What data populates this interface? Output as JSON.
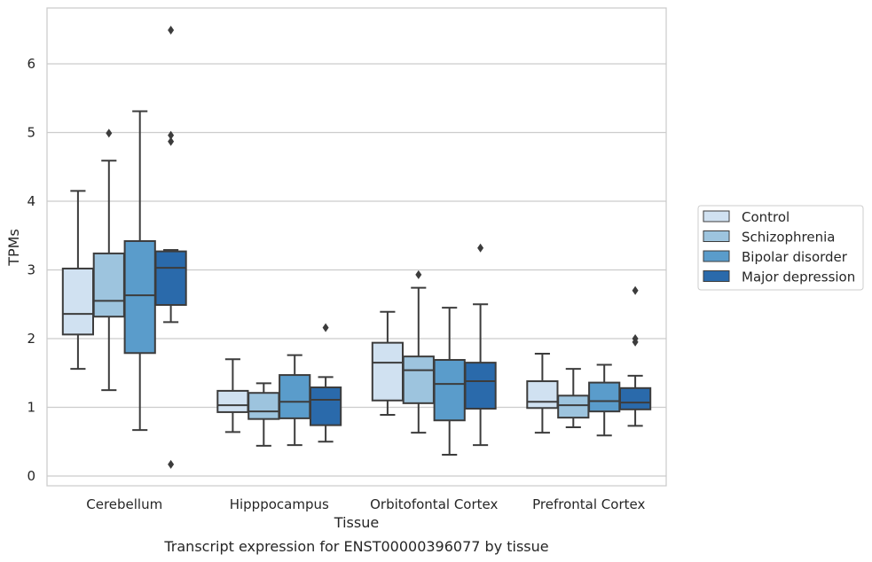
{
  "chart_data": {
    "type": "box",
    "title": "",
    "caption": "Transcript expression for ENST00000396077 by tissue",
    "xlabel": "Tissue",
    "ylabel": "TPMs",
    "ylim": [
      -0.15,
      6.8
    ],
    "yticks": [
      0,
      1,
      2,
      3,
      4,
      5,
      6
    ],
    "grid": true,
    "legend_position": "right",
    "categories": [
      "Cerebellum",
      "Hipppocampus",
      "Orbitofontal Cortex",
      "Prefrontal Cortex"
    ],
    "series": [
      {
        "name": "Control",
        "color": "#d0e1f1",
        "boxes": [
          {
            "whislo": 1.56,
            "q1": 2.06,
            "med": 2.36,
            "q3": 3.02,
            "whishi": 4.15,
            "fliers": []
          },
          {
            "whislo": 0.64,
            "q1": 0.93,
            "med": 1.03,
            "q3": 1.24,
            "whishi": 1.7,
            "fliers": []
          },
          {
            "whislo": 0.89,
            "q1": 1.1,
            "med": 1.65,
            "q3": 1.94,
            "whishi": 2.39,
            "fliers": []
          },
          {
            "whislo": 0.63,
            "q1": 0.99,
            "med": 1.08,
            "q3": 1.38,
            "whishi": 1.78,
            "fliers": []
          }
        ]
      },
      {
        "name": "Schizophrenia",
        "color": "#9dc4de",
        "boxes": [
          {
            "whislo": 1.25,
            "q1": 2.32,
            "med": 2.55,
            "q3": 3.24,
            "whishi": 4.59,
            "fliers": [
              4.99
            ]
          },
          {
            "whislo": 0.44,
            "q1": 0.83,
            "med": 0.94,
            "q3": 1.21,
            "whishi": 1.35,
            "fliers": []
          },
          {
            "whislo": 0.63,
            "q1": 1.06,
            "med": 1.54,
            "q3": 1.74,
            "whishi": 2.74,
            "fliers": [
              2.93
            ]
          },
          {
            "whislo": 0.71,
            "q1": 0.85,
            "med": 1.03,
            "q3": 1.17,
            "whishi": 1.56,
            "fliers": []
          }
        ]
      },
      {
        "name": "Bipolar disorder",
        "color": "#5a9ccb",
        "boxes": [
          {
            "whislo": 0.67,
            "q1": 1.79,
            "med": 2.63,
            "q3": 3.42,
            "whishi": 5.31,
            "fliers": []
          },
          {
            "whislo": 0.45,
            "q1": 0.84,
            "med": 1.08,
            "q3": 1.47,
            "whishi": 1.76,
            "fliers": []
          },
          {
            "whislo": 0.31,
            "q1": 0.81,
            "med": 1.34,
            "q3": 1.69,
            "whishi": 2.45,
            "fliers": []
          },
          {
            "whislo": 0.59,
            "q1": 0.94,
            "med": 1.09,
            "q3": 1.36,
            "whishi": 1.62,
            "fliers": []
          }
        ]
      },
      {
        "name": "Major depression",
        "color": "#2a6aab",
        "boxes": [
          {
            "whislo": 2.24,
            "q1": 2.49,
            "med": 3.03,
            "q3": 3.27,
            "whishi": 3.29,
            "fliers": [
              6.49,
              4.96,
              4.87,
              0.17
            ]
          },
          {
            "whislo": 0.5,
            "q1": 0.74,
            "med": 1.11,
            "q3": 1.29,
            "whishi": 1.44,
            "fliers": [
              2.16
            ]
          },
          {
            "whislo": 0.45,
            "q1": 0.98,
            "med": 1.38,
            "q3": 1.65,
            "whishi": 2.5,
            "fliers": [
              3.32
            ]
          },
          {
            "whislo": 0.73,
            "q1": 0.97,
            "med": 1.07,
            "q3": 1.28,
            "whishi": 1.46,
            "fliers": [
              2.7,
              2.0,
              1.95
            ]
          }
        ]
      }
    ],
    "colors": {
      "grid": "#cccccc",
      "frame": "#cccccc",
      "box_edge": "#3c3c3c",
      "whisker": "#3c3c3c",
      "flier": "#3c3c3c"
    }
  }
}
